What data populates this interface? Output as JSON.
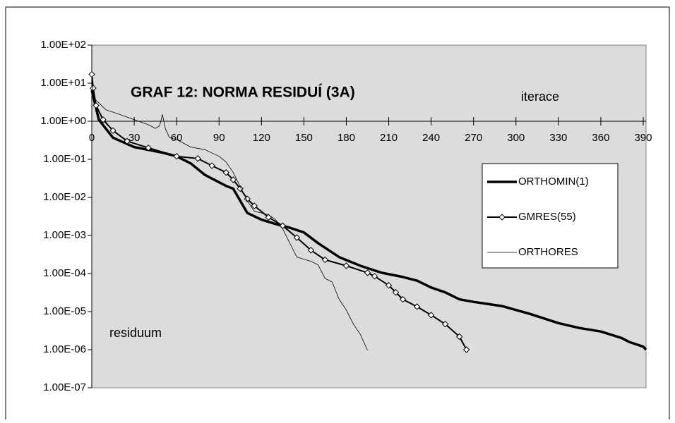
{
  "chart_data": {
    "type": "line",
    "title": "GRAF 12: NORMA RESIDUÍ (3A)",
    "x_label": "iterace",
    "y_label": "residuum",
    "yscale": "log",
    "grid": false,
    "legend": "right",
    "xlim": [
      0,
      392
    ],
    "xticks": [
      0,
      30,
      60,
      90,
      120,
      150,
      180,
      210,
      240,
      270,
      300,
      330,
      360,
      390
    ],
    "ylim": [
      1e-07,
      100
    ],
    "yticks": [
      {
        "value": 100,
        "label": "1.00E+02"
      },
      {
        "value": 10,
        "label": "1.00E+01"
      },
      {
        "value": 1,
        "label": "1.00E+00"
      },
      {
        "value": 0.1,
        "label": "1.00E-01"
      },
      {
        "value": 0.01,
        "label": "1.00E-02"
      },
      {
        "value": 0.001,
        "label": "1.00E-03"
      },
      {
        "value": 0.0001,
        "label": "1.00E-04"
      },
      {
        "value": 1e-05,
        "label": "1.00E-05"
      },
      {
        "value": 1e-06,
        "label": "1.00E-06"
      },
      {
        "value": 1e-07,
        "label": "1.00E-07"
      }
    ],
    "series": [
      {
        "name": "ORTHOMIN(1)",
        "color": "#000000",
        "line_width": 3.5,
        "x": [
          0,
          5,
          15,
          30,
          50,
          60,
          70,
          80,
          95,
          100,
          105,
          110,
          120,
          130,
          140,
          150,
          160,
          175,
          190,
          205,
          220,
          230,
          240,
          250,
          260,
          270,
          290,
          310,
          330,
          345,
          360,
          375,
          380,
          390,
          392
        ],
        "values": [
          6.5,
          1.1,
          0.37,
          0.21,
          0.15,
          0.12,
          0.078,
          0.039,
          0.02,
          0.017,
          0.0081,
          0.0039,
          0.0026,
          0.002,
          0.0016,
          0.0012,
          0.00063,
          0.00027,
          0.00016,
          0.000105,
          8.1e-05,
          6.5e-05,
          4.3e-05,
          3.2e-05,
          2.1e-05,
          1.8e-05,
          1.4e-05,
          8.7e-06,
          5e-06,
          3.7e-06,
          3e-06,
          2e-06,
          1.6e-06,
          1.2e-06,
          1e-06
        ]
      },
      {
        "name": "GMRES(55)",
        "color": "#000000",
        "line_width": 2,
        "marker": "diamond",
        "x": [
          0,
          1,
          3,
          8,
          15,
          25,
          40,
          60,
          75,
          85,
          95,
          100,
          105,
          110,
          115,
          125,
          135,
          145,
          155,
          165,
          180,
          195,
          200,
          210,
          215,
          220,
          230,
          240,
          250,
          260,
          265
        ],
        "values": [
          17,
          7.4,
          2.6,
          1.1,
          0.57,
          0.3,
          0.2,
          0.12,
          0.105,
          0.068,
          0.045,
          0.029,
          0.017,
          0.0091,
          0.006,
          0.003,
          0.0018,
          0.00088,
          0.00041,
          0.00023,
          0.00016,
          0.000105,
          8.5e-05,
          4.9e-05,
          3.2e-05,
          2.1e-05,
          1.35e-05,
          8.1e-06,
          4.7e-06,
          2.2e-06,
          1e-06
        ]
      },
      {
        "name": "ORTHORES",
        "color": "#000000",
        "line_width": 0.8,
        "x": [
          0,
          2,
          10,
          20,
          30,
          40,
          45,
          48,
          50,
          52,
          55,
          60,
          70,
          80,
          90,
          95,
          100,
          105,
          110,
          115,
          120,
          125,
          130,
          135,
          140,
          145,
          155,
          160,
          165,
          170,
          175,
          180,
          185,
          190,
          195
        ],
        "values": [
          11,
          3.9,
          2,
          1.5,
          1.1,
          0.81,
          0.65,
          0.76,
          1.5,
          0.65,
          0.37,
          0.33,
          0.21,
          0.18,
          0.12,
          0.085,
          0.045,
          0.019,
          0.0081,
          0.0043,
          0.0039,
          0.0035,
          0.0026,
          0.0015,
          0.00063,
          0.00027,
          0.00021,
          0.00017,
          7.4e-05,
          6e-05,
          2.1e-05,
          1.1e-05,
          4.7e-06,
          2.5e-06,
          9.6e-07
        ]
      }
    ]
  }
}
